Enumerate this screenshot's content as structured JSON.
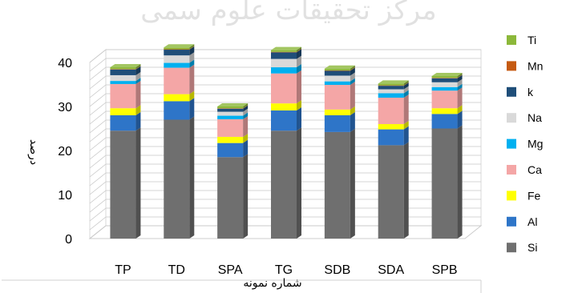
{
  "chart_data": {
    "type": "bar",
    "stacked": true,
    "three_d": true,
    "categories": [
      "TP",
      "TD",
      "SPA",
      "TG",
      "SDB",
      "SDA",
      "SPB"
    ],
    "series": [
      {
        "name": "Si",
        "color": "#6f6f6f",
        "values": [
          24.5,
          27.0,
          18.5,
          24.5,
          24.2,
          21.2,
          25.0
        ]
      },
      {
        "name": "Al",
        "color": "#2e75c8",
        "values": [
          3.5,
          4.2,
          3.2,
          4.6,
          3.8,
          3.6,
          3.3
        ]
      },
      {
        "name": "Fe",
        "color": "#ffff00",
        "values": [
          1.6,
          1.6,
          1.4,
          1.6,
          1.3,
          1.2,
          1.3
        ]
      },
      {
        "name": "Ca",
        "color": "#f4a6a6",
        "values": [
          5.5,
          6.0,
          4.0,
          6.8,
          5.6,
          6.0,
          4.0
        ]
      },
      {
        "name": "Mg",
        "color": "#00b0f0",
        "values": [
          0.7,
          1.1,
          0.8,
          1.4,
          0.8,
          1.0,
          0.8
        ]
      },
      {
        "name": "Na",
        "color": "#d9d9d9",
        "values": [
          1.3,
          1.7,
          0.9,
          1.9,
          1.3,
          0.9,
          1.1
        ]
      },
      {
        "name": "k",
        "color": "#1f4e79",
        "values": [
          1.3,
          1.3,
          0.7,
          1.5,
          1.1,
          0.8,
          0.9
        ]
      },
      {
        "name": "Mn",
        "color": "#c55a11",
        "values": [
          0.1,
          0.1,
          0.1,
          0.1,
          0.1,
          0.1,
          0.1
        ]
      },
      {
        "name": "Ti",
        "color": "#8cb83a",
        "values": [
          0.4,
          0.4,
          0.4,
          0.4,
          0.4,
          0.4,
          0.4
        ]
      }
    ],
    "ylim": [
      0,
      40
    ],
    "yticks": [
      0,
      10,
      20,
      30,
      40
    ],
    "xlabel": "شماره نمونه",
    "ylabel": "درصد",
    "grid": true,
    "legend": "right"
  },
  "watermark": "مرکز تحقیقات علوم سمی"
}
